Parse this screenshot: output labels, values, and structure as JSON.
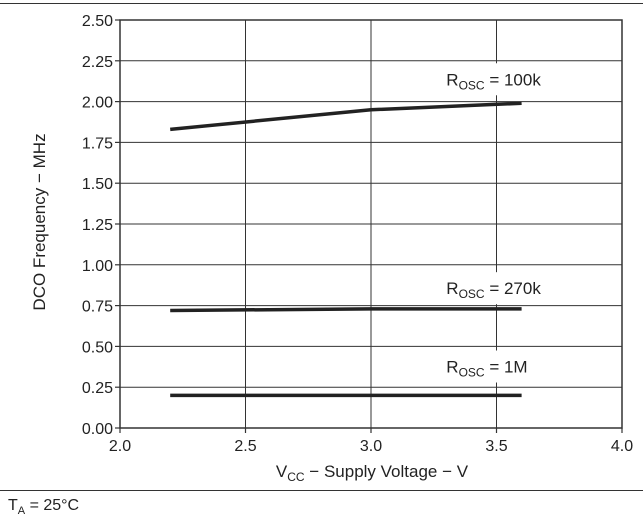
{
  "chart_data": {
    "type": "line",
    "xlabel_main": "V",
    "xlabel_sub": "CC",
    "xlabel_rest": " − Supply Voltage − V",
    "ylabel": "DCO Frequency − MHz",
    "xlim": [
      2.0,
      4.0
    ],
    "ylim": [
      0.0,
      2.5
    ],
    "x_ticks": [
      "2.0",
      "2.5",
      "3.0",
      "3.5",
      "4.0"
    ],
    "y_ticks": [
      "0.00",
      "0.25",
      "0.50",
      "0.75",
      "1.00",
      "1.25",
      "1.50",
      "1.75",
      "2.00",
      "2.25",
      "2.50"
    ],
    "grid": true,
    "series": [
      {
        "label_main": "R",
        "label_sub": "OSC",
        "label_rest": " = 100k",
        "x": [
          2.2,
          3.0,
          3.6
        ],
        "y": [
          1.83,
          1.95,
          1.99
        ]
      },
      {
        "label_main": "R",
        "label_sub": "OSC",
        "label_rest": " = 270k",
        "x": [
          2.2,
          3.0,
          3.6
        ],
        "y": [
          0.72,
          0.73,
          0.73
        ]
      },
      {
        "label_main": "R",
        "label_sub": "OSC",
        "label_rest": " = 1M",
        "x": [
          2.2,
          3.0,
          3.6
        ],
        "y": [
          0.2,
          0.2,
          0.2
        ]
      }
    ]
  },
  "condition": {
    "main": "T",
    "sub": "A",
    "rest": " = 25°C"
  }
}
